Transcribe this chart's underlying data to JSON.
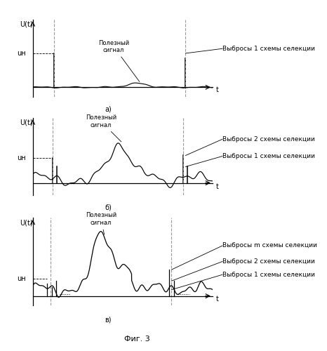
{
  "fig_width": 4.66,
  "fig_height": 5.0,
  "dpi": 100,
  "background_color": "#ffffff",
  "line_color": "#000000",
  "dashed_color": "#999999",
  "ylabel": "U(t)",
  "xlabel": "t",
  "un_label": "uн",
  "subplot_labels": [
    "a)",
    "б)",
    "в)"
  ],
  "fig_caption": "Фиг. 3",
  "annotation_a": "Полезный\nсигнал",
  "annotation_b": "Полезный\nсигнал",
  "annotation_c": "Полезный\nсигнал",
  "label_a1": "Выбросы 1 схемы селекции",
  "label_b2": "Выбросы 2 схемы селекции",
  "label_b1": "Выбросы 1 схемы селекции",
  "label_cm": "Выбросы m схемы селекции",
  "label_c2": "Выбросы 2 схемы селекции",
  "label_c1": "Выбросы 1 схемы селекции"
}
